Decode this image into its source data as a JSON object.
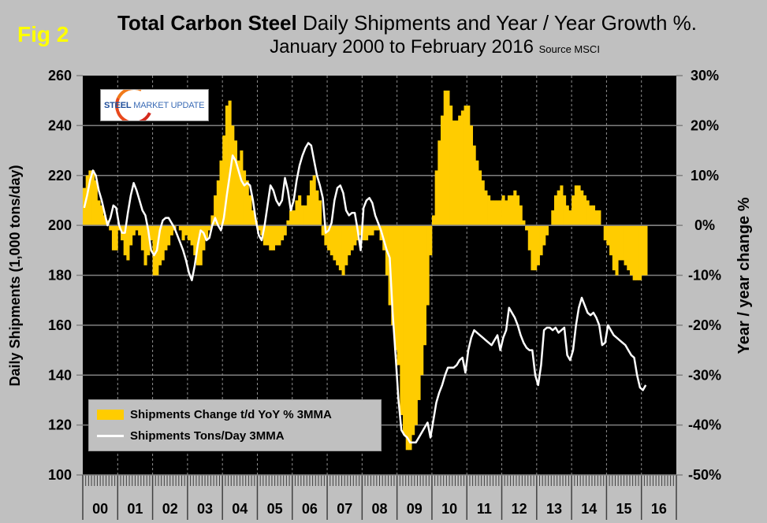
{
  "figure_label": "Fig 2",
  "title_bold": "Total Carbon Steel",
  "title_rest": " Daily Shipments and Year / Year Growth %.",
  "subtitle": "January 2000 to February 2016",
  "source": "Source MSCI",
  "logo": {
    "text_bold": "STEEL",
    "text_rest": " MARKET UPDATE"
  },
  "colors": {
    "bar": "#ffcc00",
    "line": "#ffffff",
    "plot_bg": "#000000",
    "page_bg": "#c0c0c0",
    "fig_label": "#ffff00"
  },
  "chart_data": {
    "type": "bar+line",
    "title": "Total Carbon Steel Daily Shipments and Year / Year Growth %. January 2000 to February 2016",
    "ylabel": "Daily Shipments (1,000 tons/day)",
    "y2label": "Year / year change %",
    "ylim": [
      100,
      260
    ],
    "y2lim": [
      -50,
      30
    ],
    "yticks": [
      "260",
      "240",
      "220",
      "200",
      "180",
      "160",
      "140",
      "120",
      "100"
    ],
    "y2ticks": [
      "30%",
      "20%",
      "10%",
      "0%",
      "-10%",
      "-20%",
      "-30%",
      "-40%",
      "-50%"
    ],
    "xtick_labels": [
      "00",
      "01",
      "02",
      "03",
      "04",
      "05",
      "06",
      "07",
      "08",
      "09",
      "10",
      "11",
      "12",
      "13",
      "14",
      "15",
      "16"
    ],
    "x_start": "2000-01",
    "x_end": "2016-02",
    "grid": true,
    "legend_position": "bottom-left",
    "series": [
      {
        "name": "Shipments Change t/d YoY % 3MMA",
        "type": "bar",
        "axis": "right",
        "values": [
          7.5,
          10,
          11,
          11,
          9,
          5,
          4,
          2,
          1,
          -1,
          -5,
          -5,
          -1,
          -3,
          -6,
          -7,
          -4,
          -2,
          -1,
          -2,
          -5,
          -8,
          -6,
          -3,
          -10,
          -10,
          -8,
          -7,
          -5,
          -4,
          -2,
          -1,
          0,
          -1,
          -3,
          -2,
          -3,
          -4,
          -6,
          -8,
          -8,
          -5,
          -3,
          -1,
          2,
          6,
          9,
          13,
          18,
          24,
          25,
          20,
          17,
          13,
          15,
          11,
          9,
          6,
          3,
          1,
          -1,
          -2,
          -4,
          -4,
          -5,
          -5,
          -4,
          -4,
          -3,
          -2,
          1,
          3,
          3,
          5,
          6,
          4,
          4,
          6,
          9,
          10,
          7,
          5,
          -2,
          -4,
          -5,
          -6,
          -7,
          -8,
          -9,
          -10,
          -8,
          -6,
          -5,
          -4,
          -3,
          -2,
          -3,
          -3,
          -2,
          -2,
          -1,
          -1,
          -3,
          -5,
          -10,
          -16,
          -20,
          -25,
          -28,
          -38,
          -42,
          -45,
          -45,
          -42,
          -40,
          -35,
          -30,
          -24,
          -16,
          -6,
          2,
          11,
          17,
          22,
          27,
          27,
          24,
          21,
          21,
          22,
          23,
          24,
          24,
          20,
          16,
          13,
          11,
          9,
          7,
          6,
          5,
          5,
          5,
          5,
          6,
          5,
          6,
          6,
          7,
          6,
          4,
          1,
          -1,
          -5,
          -9,
          -9,
          -8,
          -6,
          -4,
          -2,
          0,
          3,
          6,
          7,
          8,
          6,
          4,
          3,
          6,
          8,
          8,
          7,
          6,
          5,
          4,
          4,
          3,
          3,
          0,
          -3,
          -4,
          -6,
          -9,
          -10,
          -7,
          -7,
          -8,
          -9,
          -10,
          -11,
          -11,
          -11,
          -10,
          -10
        ]
      },
      {
        "name": "Shipments Tons/Day 3MMA",
        "type": "line",
        "axis": "left",
        "values": [
          207,
          212,
          218,
          222,
          220,
          214,
          210,
          205,
          200,
          203,
          208,
          207,
          200,
          197,
          197,
          205,
          212,
          217,
          214,
          210,
          206,
          204,
          198,
          190,
          188,
          190,
          198,
          202,
          203,
          203,
          201,
          199,
          196,
          193,
          190,
          186,
          181,
          178,
          184,
          192,
          198,
          197,
          194,
          195,
          200,
          203,
          200,
          198,
          203,
          212,
          220,
          228,
          226,
          222,
          218,
          216,
          217,
          216,
          210,
          202,
          196,
          194,
          200,
          208,
          216,
          214,
          210,
          208,
          210,
          219,
          214,
          206,
          210,
          218,
          224,
          228,
          231,
          233,
          232,
          226,
          220,
          216,
          211,
          197,
          198,
          201,
          210,
          215,
          216,
          213,
          206,
          204,
          205,
          205,
          198,
          190,
          207,
          210,
          211,
          209,
          204,
          201,
          198,
          194,
          190,
          187,
          165,
          148,
          130,
          118,
          116,
          115,
          113,
          113,
          113,
          115,
          117,
          119,
          121,
          115,
          122,
          129,
          133,
          136,
          140,
          143,
          143,
          143,
          144,
          146,
          147,
          141,
          150,
          155,
          158,
          157,
          156,
          155,
          154,
          153,
          152,
          154,
          156,
          150,
          155,
          158,
          167,
          165,
          163,
          160,
          156,
          153,
          151,
          150,
          150,
          140,
          136,
          144,
          158,
          159,
          159,
          158,
          159,
          157,
          158,
          159,
          148,
          146,
          150,
          160,
          167,
          171,
          168,
          165,
          164,
          165,
          163,
          160,
          152,
          153,
          160,
          158,
          156,
          155,
          154,
          153,
          152,
          150,
          148,
          147,
          140,
          135,
          134,
          136
        ]
      }
    ]
  }
}
